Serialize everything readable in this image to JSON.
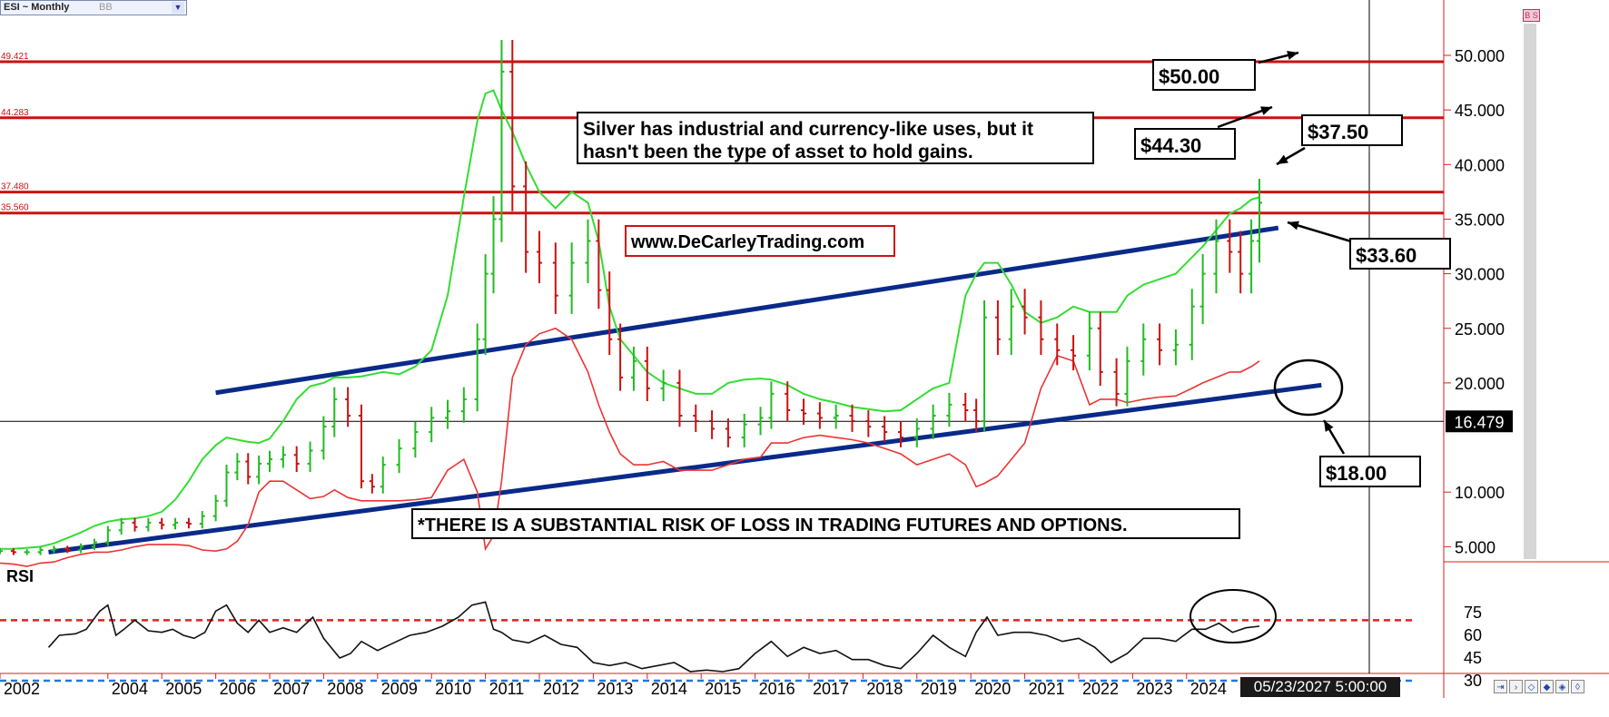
{
  "toolbar": {
    "symbol_label": "ESI ~ Monthly",
    "mode_label": "BB",
    "bs_label": "B S"
  },
  "status": {
    "datetime": "05/23/2027 5:00:00 PM",
    "last_price": "16.479"
  },
  "annotations": {
    "note_text": [
      "Silver has industrial and currency-like uses, but it",
      "hasn't been the type of asset to hold gains."
    ],
    "website": "www.DeCarleyTrading.com",
    "disclaimer": "*THERE IS A SUBSTANTIAL RISK OF LOSS IN TRADING FUTURES AND OPTIONS.",
    "callouts": [
      "$50.00",
      "$44.30",
      "$37.50",
      "$33.60",
      "$18.00"
    ],
    "rsi_label": "RSI"
  },
  "colors": {
    "price_up": "#22bb22",
    "price_down": "#cc1111",
    "upper_band": "#33dd33",
    "lower_band": "#ee3333",
    "trendline": "#0a2a8a",
    "resistance": "#cc1111",
    "rsi_line": "#111111",
    "rsi_upper": "#dd2222",
    "rsi_lower": "#2277dd"
  },
  "chart_data": [
    {
      "type": "line",
      "x": [
        2002.0,
        2002.25,
        2002.5,
        2002.75,
        2003.0,
        2003.25,
        2003.5,
        2003.75,
        2004.0,
        2004.25,
        2004.5,
        2004.75,
        2005.0,
        2005.25,
        2005.5,
        2005.75,
        2006.0,
        2006.2,
        2006.4,
        2006.6,
        2006.8,
        2007.0,
        2007.25,
        2007.5,
        2007.75,
        2008.0,
        2008.2,
        2008.45,
        2008.7,
        2008.9,
        2009.1,
        2009.4,
        2009.7,
        2010.0,
        2010.3,
        2010.6,
        2010.85,
        2011.0,
        2011.15,
        2011.3,
        2011.5,
        2011.75,
        2012.0,
        2012.3,
        2012.6,
        2012.9,
        2013.1,
        2013.3,
        2013.5,
        2013.75,
        2014.0,
        2014.3,
        2014.6,
        2014.9,
        2015.2,
        2015.5,
        2015.8,
        2016.1,
        2016.3,
        2016.6,
        2016.9,
        2017.2,
        2017.5,
        2017.8,
        2018.1,
        2018.4,
        2018.7,
        2019.0,
        2019.3,
        2019.6,
        2019.9,
        2020.1,
        2020.25,
        2020.5,
        2020.75,
        2021.0,
        2021.3,
        2021.6,
        2021.9,
        2022.2,
        2022.4,
        2022.7,
        2022.9,
        2023.2,
        2023.5,
        2023.8,
        2024.1,
        2024.3,
        2024.55,
        2024.8,
        2025.0,
        2025.2,
        2025.35
      ],
      "series": [
        {
          "values": [
            4.6,
            4.5,
            4.5,
            4.7,
            4.8,
            4.7,
            5.0,
            5.4,
            6.5,
            7.2,
            6.8,
            7.2,
            7.0,
            7.2,
            7.1,
            7.8,
            9.2,
            11.8,
            12.8,
            11.4,
            12.6,
            13.0,
            13.4,
            12.6,
            13.8,
            16.0,
            18.5,
            17.0,
            11.0,
            10.5,
            12.5,
            14.0,
            15.5,
            16.8,
            17.4,
            18.5,
            24.0,
            30.0,
            35.0,
            48.5,
            38.0,
            32.0,
            31.0,
            28.0,
            31.0,
            33.0,
            28.5,
            24.0,
            20.5,
            22.0,
            19.5,
            20.0,
            17.0,
            16.5,
            15.8,
            15.0,
            16.2,
            16.8,
            19.0,
            17.5,
            17.2,
            16.8,
            17.0,
            16.5,
            16.0,
            15.5,
            15.0,
            15.8,
            17.0,
            18.0,
            17.5,
            16.5,
            26.0,
            24.0,
            27.0,
            26.0,
            24.0,
            23.0,
            22.5,
            25.0,
            21.0,
            19.0,
            22.0,
            24.0,
            23.0,
            23.5,
            27.0,
            30.0,
            33.0,
            32.0,
            30.0,
            33.0,
            36.5
          ]
        },
        {
          "values": [
            4.8,
            4.8,
            4.9,
            5.0,
            5.3,
            5.8,
            6.3,
            6.9,
            7.3,
            7.5,
            7.6,
            7.8,
            8.2,
            9.3,
            11.0,
            13.0,
            14.3,
            15.0,
            14.8,
            14.6,
            14.5,
            14.9,
            16.5,
            18.5,
            19.7,
            20.0,
            20.5,
            20.5,
            20.6,
            20.8,
            21.0,
            20.8,
            21.5,
            23.0,
            28.0,
            37.0,
            44.0,
            46.5,
            46.8,
            45.0,
            43.0,
            40.0,
            37.5,
            36.0,
            37.5,
            36.5,
            33.0,
            27.0,
            24.0,
            22.5,
            21.0,
            20.0,
            19.5,
            19.0,
            19.0,
            20.0,
            20.3,
            20.4,
            20.3,
            19.8,
            19.0,
            18.5,
            18.2,
            17.8,
            17.6,
            17.4,
            17.5,
            18.5,
            19.5,
            20.0,
            28.0,
            30.0,
            31.0,
            31.0,
            29.0,
            26.5,
            25.5,
            26.0,
            27.0,
            26.5,
            26.5,
            26.5,
            28.0,
            29.0,
            29.5,
            30.0,
            31.5,
            32.5,
            34.0,
            35.5,
            36.0,
            36.8,
            37.0
          ]
        },
        {
          "values": [
            3.5,
            3.4,
            3.2,
            3.5,
            3.6,
            4.0,
            4.3,
            4.5,
            4.5,
            4.7,
            5.0,
            5.2,
            5.2,
            5.2,
            5.1,
            4.7,
            4.6,
            4.8,
            5.5,
            7.0,
            10.0,
            11.0,
            11.0,
            10.2,
            9.4,
            9.6,
            10.2,
            9.5,
            9.2,
            9.2,
            9.2,
            9.2,
            9.3,
            9.5,
            12.0,
            13.0,
            10.0,
            4.8,
            6.0,
            11.0,
            20.5,
            23.5,
            24.5,
            25.0,
            24.0,
            21.0,
            18.0,
            15.5,
            13.5,
            12.5,
            12.5,
            12.8,
            12.0,
            12.0,
            12.0,
            12.5,
            13.0,
            13.2,
            14.5,
            14.5,
            15.0,
            15.2,
            15.0,
            14.8,
            14.5,
            14.0,
            13.5,
            12.5,
            13.0,
            13.5,
            12.5,
            10.5,
            10.8,
            11.5,
            13.0,
            14.5,
            19.5,
            22.5,
            22.0,
            18.0,
            18.5,
            18.5,
            18.2,
            18.5,
            18.7,
            18.8,
            19.5,
            20.0,
            20.5,
            21.0,
            21.0,
            21.5,
            22.0
          ]
        }
      ],
      "ylim": [
        2.2,
        52.5
      ],
      "xlim": [
        2002,
        2027.4
      ],
      "y_ticks": [
        "50.000",
        "45.000",
        "40.000",
        "35.000",
        "30.000",
        "25.000",
        "20.000",
        "10.000",
        "5.000"
      ],
      "x_ticks": [
        "2002",
        "2004",
        "2005",
        "2006",
        "2007",
        "2008",
        "2009",
        "2010",
        "2011",
        "2012",
        "2013",
        "2014",
        "2015",
        "2016",
        "2017",
        "2018",
        "2019",
        "2020",
        "2021",
        "2022",
        "2023",
        "2024"
      ],
      "horizontal_lines": [
        {
          "value": 49.421,
          "label": "49.421"
        },
        {
          "value": 44.283,
          "label": "44.283"
        },
        {
          "value": 37.48,
          "label": "37.480"
        },
        {
          "value": 35.56,
          "label": "35.560"
        }
      ],
      "trendlines": [
        {
          "x": [
            2006,
            2025.7
          ],
          "y": [
            19.1,
            34.2
          ]
        },
        {
          "x": [
            2002.9,
            2026.5
          ],
          "y": [
            4.5,
            19.8
          ]
        }
      ],
      "grid": false
    },
    {
      "type": "line",
      "title": "RSI",
      "x": [
        2002.9,
        2003.1,
        2003.4,
        2003.6,
        2003.85,
        2004.0,
        2004.15,
        2004.3,
        2004.5,
        2004.75,
        2005.0,
        2005.2,
        2005.4,
        2005.6,
        2005.8,
        2006.0,
        2006.2,
        2006.4,
        2006.6,
        2006.8,
        2007.0,
        2007.25,
        2007.5,
        2007.8,
        2008.0,
        2008.3,
        2008.5,
        2008.7,
        2009.0,
        2009.3,
        2009.6,
        2009.9,
        2010.2,
        2010.5,
        2010.75,
        2011.0,
        2011.15,
        2011.3,
        2011.5,
        2011.8,
        2012.1,
        2012.4,
        2012.7,
        2013.0,
        2013.3,
        2013.6,
        2013.9,
        2014.2,
        2014.5,
        2014.8,
        2015.1,
        2015.4,
        2015.7,
        2016.0,
        2016.3,
        2016.6,
        2016.9,
        2017.2,
        2017.5,
        2017.8,
        2018.1,
        2018.4,
        2018.7,
        2019.0,
        2019.3,
        2019.6,
        2019.9,
        2020.1,
        2020.3,
        2020.5,
        2020.8,
        2021.1,
        2021.4,
        2021.7,
        2022.0,
        2022.3,
        2022.6,
        2022.9,
        2023.2,
        2023.5,
        2023.8,
        2024.1,
        2024.35,
        2024.6,
        2024.85,
        2025.1,
        2025.35
      ],
      "values": [
        52,
        60,
        61,
        64,
        76,
        80,
        60,
        64,
        70,
        63,
        62,
        64,
        60,
        58,
        62,
        76,
        80,
        68,
        62,
        70,
        62,
        65,
        62,
        72,
        58,
        45,
        48,
        56,
        50,
        55,
        60,
        62,
        66,
        72,
        80,
        82,
        64,
        62,
        57,
        55,
        60,
        54,
        52,
        42,
        40,
        42,
        38,
        40,
        42,
        36,
        37,
        36,
        38,
        48,
        56,
        46,
        52,
        48,
        50,
        44,
        44,
        40,
        38,
        48,
        60,
        52,
        46,
        62,
        72,
        60,
        62,
        62,
        60,
        56,
        58,
        52,
        42,
        48,
        58,
        58,
        56,
        64,
        64,
        68,
        62,
        65,
        66
      ],
      "ylim": [
        25,
        85
      ],
      "y_ticks": [
        "75",
        "60",
        "45",
        "30"
      ],
      "reference_lines": [
        70,
        30
      ]
    }
  ]
}
